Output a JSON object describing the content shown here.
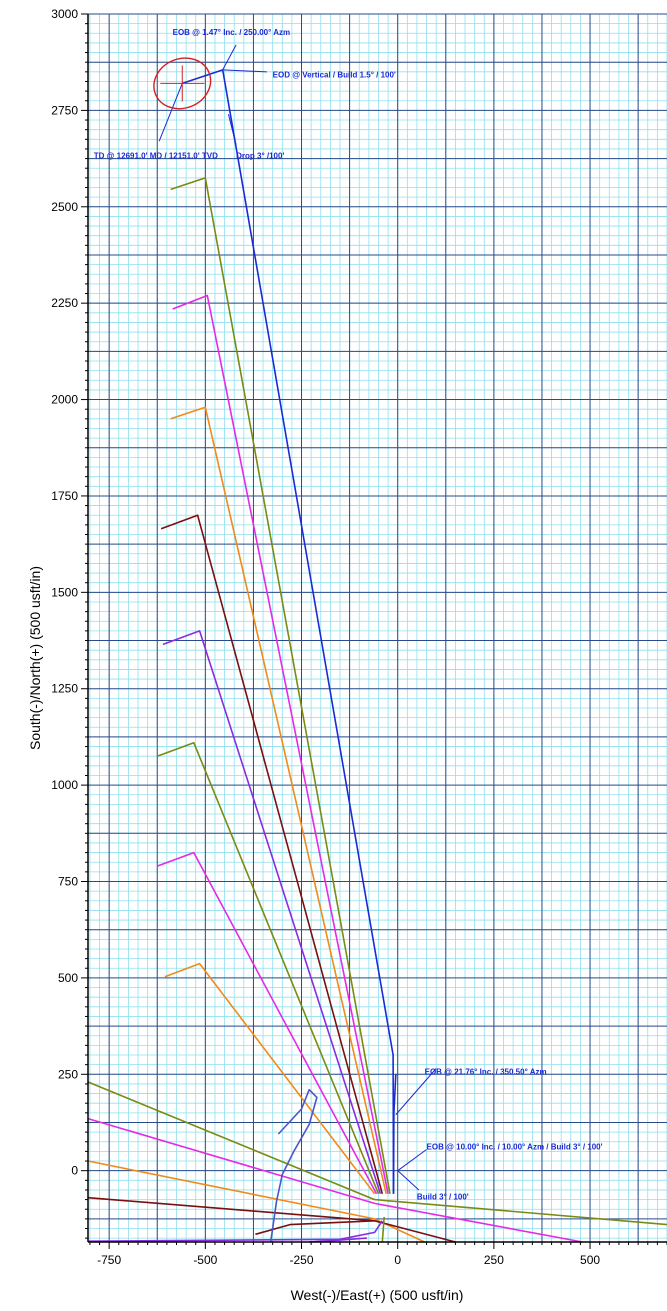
{
  "chart_data": {
    "type": "line",
    "xlabel": "West(-)/East(+) (500 usft/in)",
    "ylabel": "South(-)/North(+) (500 usft/in)",
    "xlim": [
      -805,
      700
    ],
    "ylim": [
      -185,
      3000
    ],
    "xticks": [
      -750,
      -500,
      -250,
      0,
      250,
      500
    ],
    "yticks": [
      0,
      250,
      500,
      750,
      1000,
      1250,
      1500,
      1750,
      2000,
      2250,
      2500,
      2750,
      3000
    ],
    "grid": true,
    "series": [
      {
        "color": "#1a2bd6",
        "points": [
          [
            -11,
            -60
          ],
          [
            -12,
            300
          ],
          [
            -455,
            2855
          ],
          [
            -560,
            2820
          ]
        ]
      },
      {
        "color": "#1a2bd6",
        "points": [
          [
            -11,
            -60
          ],
          [
            -10,
            150
          ],
          [
            -5,
            250
          ]
        ]
      },
      {
        "color": "#7a8a12",
        "points": [
          [
            -20,
            -60
          ],
          [
            -500,
            2575
          ],
          [
            -590,
            2545
          ]
        ]
      },
      {
        "color": "#e629e6",
        "points": [
          [
            -25,
            -60
          ],
          [
            -495,
            2270
          ],
          [
            -585,
            2235
          ]
        ]
      },
      {
        "color": "#f08a1a",
        "points": [
          [
            -30,
            -60
          ],
          [
            -500,
            1980
          ],
          [
            -590,
            1950
          ]
        ]
      },
      {
        "color": "#7a0f0f",
        "points": [
          [
            -40,
            -60
          ],
          [
            -520,
            1700
          ],
          [
            -615,
            1665
          ]
        ]
      },
      {
        "color": "#8a2be2",
        "points": [
          [
            -45,
            -60
          ],
          [
            -515,
            1400
          ],
          [
            -610,
            1365
          ]
        ]
      },
      {
        "color": "#7a8a12",
        "points": [
          [
            -50,
            -60
          ],
          [
            -530,
            1110
          ],
          [
            -625,
            1075
          ]
        ]
      },
      {
        "color": "#e629e6",
        "points": [
          [
            -55,
            -60
          ],
          [
            -530,
            825
          ],
          [
            -625,
            790
          ]
        ]
      },
      {
        "color": "#f08a1a",
        "points": [
          [
            -60,
            -60
          ],
          [
            -515,
            537
          ],
          [
            -605,
            503
          ]
        ]
      },
      {
        "color": "#7a8a12",
        "points": [
          [
            -805,
            230
          ],
          [
            -60,
            -75
          ],
          [
            700,
            -140
          ]
        ]
      },
      {
        "color": "#e629e6",
        "points": [
          [
            -805,
            135
          ],
          [
            -60,
            -85
          ],
          [
            480,
            -185
          ]
        ]
      },
      {
        "color": "#f08a1a",
        "points": [
          [
            -805,
            25
          ],
          [
            -60,
            -125
          ],
          [
            70,
            -185
          ]
        ]
      },
      {
        "color": "#7a0f0f",
        "points": [
          [
            -805,
            -70
          ],
          [
            -60,
            -130
          ],
          [
            150,
            -185
          ]
        ]
      },
      {
        "color": "#7a0f0f",
        "points": [
          [
            -370,
            -165
          ],
          [
            -280,
            -140
          ],
          [
            -60,
            -130
          ]
        ]
      },
      {
        "color": "#8a2be2",
        "points": [
          [
            -805,
            -183
          ],
          [
            -150,
            -178
          ],
          [
            -60,
            -160
          ],
          [
            -40,
            -130
          ]
        ]
      },
      {
        "color": "#7a8a12",
        "points": [
          [
            -40,
            -185
          ],
          [
            -35,
            -120
          ]
        ]
      },
      {
        "color": "#4a56c8",
        "points": [
          [
            -310,
            95
          ],
          [
            -250,
            160
          ],
          [
            -230,
            210
          ],
          [
            -210,
            190
          ],
          [
            -230,
            120
          ],
          [
            -270,
            50
          ],
          [
            -300,
            -10
          ],
          [
            -315,
            -80
          ],
          [
            -330,
            -185
          ]
        ]
      },
      {
        "color": "#8a2be2",
        "points": [
          [
            -230,
            -185
          ],
          [
            -150,
            -180
          ],
          [
            -80,
            -175
          ]
        ]
      }
    ],
    "annotations": [
      {
        "text": "EOB @ 1.47° Inc. / 250.00° Azm",
        "x": -585,
        "y": 2945,
        "color": "#1a2bd6"
      },
      {
        "text": "EOD @ Vertical / Build 1.5° / 100'",
        "x": -325,
        "y": 2835,
        "color": "#1a2bd6"
      },
      {
        "text": "Drop 3° /100'",
        "x": -420,
        "y": 2625,
        "color": "#1a2bd6"
      },
      {
        "text": "TD @ 12691.0' MD / 12151.0' TVD",
        "x": -790,
        "y": 2625,
        "color": "#1a2bd6"
      },
      {
        "text": "EOB @ 21.76° Inc. / 350.50° Azm",
        "x": 70,
        "y": 250,
        "color": "#1a2bd6"
      },
      {
        "text": "EOB @ 10.00° Inc. / 10.00° Azm / Build 3° / 100'",
        "x": 75,
        "y": 55,
        "color": "#1a2bd6"
      },
      {
        "text": "Build 3° / 100'",
        "x": 50,
        "y": -75,
        "color": "#1a2bd6"
      }
    ],
    "leaders": [
      [
        [
          -455,
          2855
        ],
        [
          -420,
          2920
        ]
      ],
      [
        [
          -455,
          2855
        ],
        [
          -340,
          2850
        ]
      ],
      [
        [
          -440,
          2740
        ],
        [
          -420,
          2660
        ]
      ],
      [
        [
          -560,
          2820
        ],
        [
          -620,
          2670
        ]
      ],
      [
        [
          -5,
          145
        ],
        [
          100,
          265
        ]
      ],
      [
        [
          0,
          0
        ],
        [
          75,
          55
        ]
      ],
      [
        [
          0,
          0
        ],
        [
          55,
          -50
        ]
      ]
    ],
    "target": {
      "cx": -560,
      "cy": 2820,
      "rx": 100,
      "ry": 40,
      "color": "#d62020"
    }
  }
}
